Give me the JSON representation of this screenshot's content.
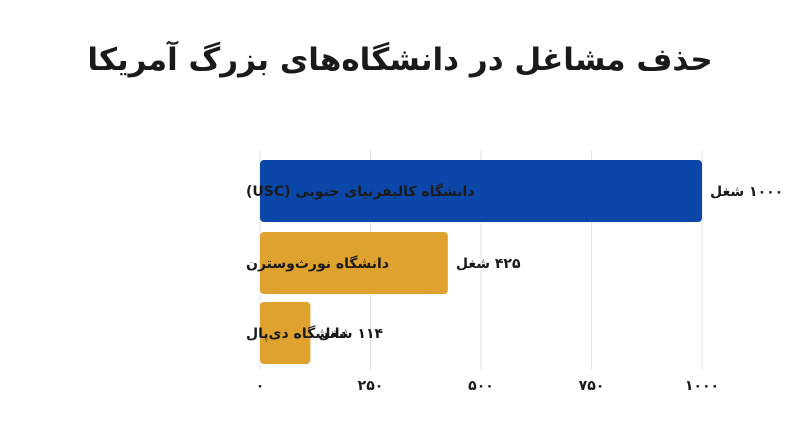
{
  "chart_data": {
    "type": "bar",
    "orientation": "horizontal",
    "title": "حذف مشاغل در دانشگاه‌های بزرگ آمریکا",
    "categories": [
      "دانشگاه کالیفرنیای جنوبی (USC)",
      "دانشگاه نورث‌وسترن",
      "دانشگاه دی‌پال"
    ],
    "values": [
      1000,
      425,
      114
    ],
    "value_labels": [
      "۱۰۰۰ شغل",
      "۴۲۵ شغل",
      "۱۱۴ شغل"
    ],
    "bar_colors": [
      "#0b47a8",
      "#e0a22e",
      "#e0a22e"
    ],
    "xlim": [
      0,
      1000
    ],
    "xticks": [
      0,
      250,
      500,
      750,
      1000
    ],
    "xtick_labels": [
      "۰",
      "۲۵۰",
      "۵۰۰",
      "۷۵۰",
      "۱۰۰۰"
    ],
    "grid": true,
    "xlabel": "",
    "ylabel": ""
  }
}
